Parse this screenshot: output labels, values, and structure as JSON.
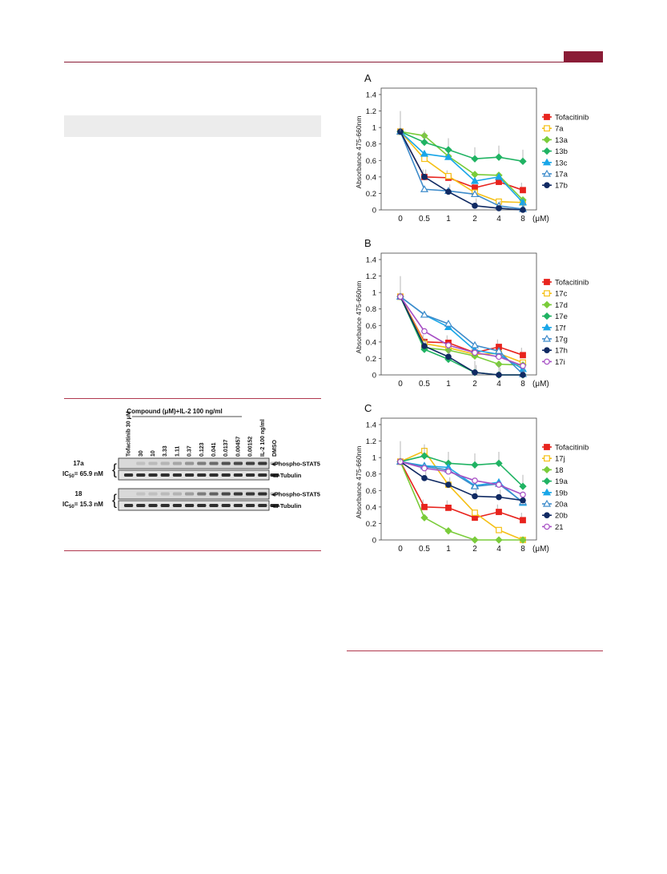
{
  "colors": {
    "accent": "#8a1c36",
    "series": {
      "Tofacitinib": "#e8231d",
      "yellow": "#f5c016",
      "lightgreen": "#7acc3a",
      "green": "#20b363",
      "cyan": "#19a6e8",
      "blue": "#3f8ccb",
      "navy": "#102a63",
      "purple": "#a64ec4"
    }
  },
  "blot": {
    "title": "Compound (μM)+IL-2 100 ng/ml",
    "lane_labels": [
      "Tofacitinib 30 μM",
      "30",
      "10",
      "3.33",
      "1.11",
      "0.37",
      "0.123",
      "0.041",
      "0.0137",
      "0.00457",
      "0.00152",
      "IL-2 100 ng/ml",
      "DMSO"
    ],
    "panels": [
      {
        "compound": "17a",
        "ic50_prefix": "IC",
        "ic50_sub": "50",
        "ic50_value": "= 65.9 nM",
        "bands": [
          "Phospho-STAT5",
          "α-Tubulin"
        ],
        "phospho_intensity": [
          0.0,
          0.05,
          0.08,
          0.12,
          0.2,
          0.3,
          0.45,
          0.55,
          0.7,
          0.75,
          0.8,
          0.85,
          0.05
        ]
      },
      {
        "compound": "18",
        "ic50_prefix": "IC",
        "ic50_sub": "50",
        "ic50_value": "= 15.3 nM",
        "bands": [
          "Phospho-STAT5",
          "α-Tubulin"
        ],
        "phospho_intensity": [
          0.0,
          0.03,
          0.05,
          0.08,
          0.12,
          0.25,
          0.45,
          0.6,
          0.75,
          0.85,
          0.85,
          0.9,
          0.05
        ]
      }
    ]
  },
  "chart_data": [
    {
      "type": "line",
      "panel_label": "A",
      "ylabel": "Absorbance 475-660nm",
      "x_categories": [
        "0",
        "0.5",
        "1",
        "2",
        "4",
        "8"
      ],
      "x_unit": "(μM)",
      "ylim": [
        0,
        1.4
      ],
      "yticks": [
        "0",
        "0.2",
        "0.4",
        "0.6",
        "0.8",
        "1",
        "1.2",
        "1.4"
      ],
      "legend": "right",
      "series": [
        {
          "name": "Tofacitinib",
          "color": "#e8231d",
          "marker": "square",
          "filled": true,
          "values": [
            0.95,
            0.4,
            0.39,
            0.27,
            0.34,
            0.24
          ]
        },
        {
          "name": "7a",
          "color": "#f5c016",
          "marker": "square",
          "filled": false,
          "values": [
            0.95,
            0.62,
            0.41,
            0.21,
            0.1,
            0.09
          ]
        },
        {
          "name": "13a",
          "color": "#7acc3a",
          "marker": "diamond",
          "filled": true,
          "values": [
            0.95,
            0.9,
            0.65,
            0.43,
            0.42,
            0.12
          ]
        },
        {
          "name": "13b",
          "color": "#20b363",
          "marker": "diamond",
          "filled": true,
          "values": [
            0.95,
            0.82,
            0.73,
            0.62,
            0.64,
            0.59
          ]
        },
        {
          "name": "13c",
          "color": "#19a6e8",
          "marker": "triangle",
          "filled": true,
          "values": [
            0.95,
            0.68,
            0.64,
            0.35,
            0.4,
            0.09
          ]
        },
        {
          "name": "17a",
          "color": "#3f8ccb",
          "marker": "triangle",
          "filled": false,
          "values": [
            0.95,
            0.25,
            0.23,
            0.19,
            0.05,
            0.01
          ]
        },
        {
          "name": "17b",
          "color": "#102a63",
          "marker": "circle",
          "filled": true,
          "values": [
            0.95,
            0.4,
            0.22,
            0.05,
            0.02,
            0.0
          ]
        }
      ]
    },
    {
      "type": "line",
      "panel_label": "B",
      "ylabel": "Absorbance 475-660nm",
      "x_categories": [
        "0",
        "0.5",
        "1",
        "2",
        "4",
        "8"
      ],
      "x_unit": "(μM)",
      "ylim": [
        0,
        1.4
      ],
      "yticks": [
        "0",
        "0.2",
        "0.4",
        "0.6",
        "0.8",
        "1",
        "1.2",
        "1.4"
      ],
      "legend": "right",
      "series": [
        {
          "name": "Tofacitinib",
          "color": "#e8231d",
          "marker": "square",
          "filled": true,
          "values": [
            0.95,
            0.4,
            0.39,
            0.27,
            0.34,
            0.24
          ]
        },
        {
          "name": "17c",
          "color": "#f5c016",
          "marker": "square",
          "filled": false,
          "values": [
            0.95,
            0.38,
            0.33,
            0.25,
            0.26,
            0.15
          ]
        },
        {
          "name": "17d",
          "color": "#7acc3a",
          "marker": "diamond",
          "filled": true,
          "values": [
            0.95,
            0.33,
            0.3,
            0.23,
            0.13,
            0.12
          ]
        },
        {
          "name": "17e",
          "color": "#20b363",
          "marker": "diamond",
          "filled": true,
          "values": [
            0.95,
            0.31,
            0.19,
            0.03,
            0.0,
            0.0
          ]
        },
        {
          "name": "17f",
          "color": "#19a6e8",
          "marker": "triangle",
          "filled": true,
          "values": [
            0.95,
            0.73,
            0.58,
            0.3,
            0.25,
            0.07
          ]
        },
        {
          "name": "17g",
          "color": "#3f8ccb",
          "marker": "triangle",
          "filled": false,
          "values": [
            0.95,
            0.73,
            0.62,
            0.36,
            0.29,
            0.01
          ]
        },
        {
          "name": "17h",
          "color": "#102a63",
          "marker": "circle",
          "filled": true,
          "values": [
            0.95,
            0.35,
            0.22,
            0.03,
            0.0,
            0.0
          ]
        },
        {
          "name": "17i",
          "color": "#a64ec4",
          "marker": "circle",
          "filled": false,
          "values": [
            0.95,
            0.53,
            0.36,
            0.27,
            0.22,
            0.11
          ]
        }
      ]
    },
    {
      "type": "line",
      "panel_label": "C",
      "ylabel": "Absorbance 475-660nm",
      "x_categories": [
        "0",
        "0.5",
        "1",
        "2",
        "4",
        "8"
      ],
      "x_unit": "(μM)",
      "ylim": [
        0,
        1.4
      ],
      "yticks": [
        "0",
        "0.2",
        "0.4",
        "0.6",
        "0.8",
        "1",
        "1.2",
        "1.4"
      ],
      "legend": "right",
      "series": [
        {
          "name": "Tofacitinib",
          "color": "#e8231d",
          "marker": "square",
          "filled": true,
          "values": [
            0.95,
            0.4,
            0.39,
            0.27,
            0.34,
            0.24
          ]
        },
        {
          "name": "17j",
          "color": "#f5c016",
          "marker": "square",
          "filled": false,
          "values": [
            0.95,
            1.08,
            0.67,
            0.33,
            0.12,
            0.0
          ]
        },
        {
          "name": "18",
          "color": "#7acc3a",
          "marker": "diamond",
          "filled": true,
          "values": [
            0.95,
            0.27,
            0.11,
            0.0,
            0.0,
            0.0
          ]
        },
        {
          "name": "19a",
          "color": "#20b363",
          "marker": "diamond",
          "filled": true,
          "values": [
            0.95,
            1.02,
            0.93,
            0.91,
            0.93,
            0.65
          ]
        },
        {
          "name": "19b",
          "color": "#19a6e8",
          "marker": "triangle",
          "filled": true,
          "values": [
            0.95,
            0.9,
            0.88,
            0.66,
            0.7,
            0.45
          ]
        },
        {
          "name": "20a",
          "color": "#3f8ccb",
          "marker": "triangle",
          "filled": false,
          "values": [
            0.95,
            0.89,
            0.85,
            0.65,
            0.68,
            0.46
          ]
        },
        {
          "name": "20b",
          "color": "#102a63",
          "marker": "circle",
          "filled": true,
          "values": [
            0.95,
            0.75,
            0.67,
            0.53,
            0.52,
            0.48
          ]
        },
        {
          "name": "21",
          "color": "#a64ec4",
          "marker": "circle",
          "filled": false,
          "values": [
            0.95,
            0.87,
            0.83,
            0.72,
            0.67,
            0.55
          ]
        }
      ]
    }
  ]
}
